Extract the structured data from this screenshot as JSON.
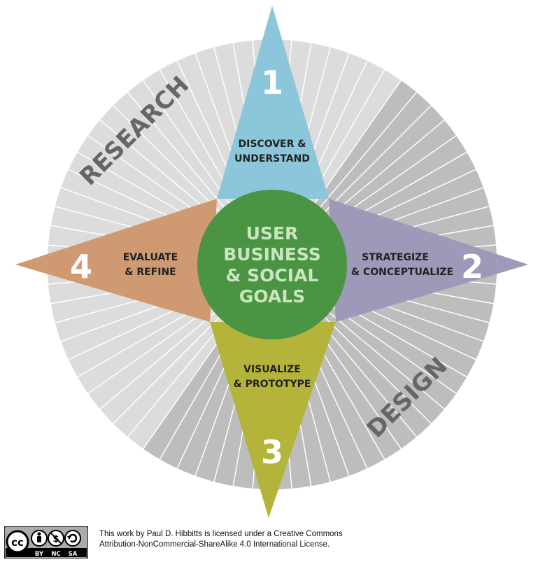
{
  "center": {
    "lines": [
      "USER",
      "BUSINESS",
      "& SOCIAL",
      "GOALS"
    ]
  },
  "quadrant_labels": {
    "research": "RESEARCH",
    "design": "DESIGN"
  },
  "points": [
    {
      "number": "1",
      "lines": [
        "DISCOVER &",
        "UNDERSTAND"
      ]
    },
    {
      "number": "2",
      "lines": [
        "STRATEGIZE",
        "& CONCEPTUALIZE"
      ]
    },
    {
      "number": "3",
      "lines": [
        "VISUALIZE",
        "& PROTOTYPE"
      ]
    },
    {
      "number": "4",
      "lines": [
        "EVALUATE",
        "& REFINE"
      ]
    }
  ],
  "colors": {
    "blue": "#8cc6da",
    "purple": "#9c99b9",
    "olive": "#b5b43a",
    "orange": "#cf9a72",
    "green": "#4a9444",
    "wheel_light": "#dcdcdc",
    "wheel_dark": "#bdbdbd",
    "label_gray": "#666666"
  },
  "license": {
    "badge": {
      "cc": "cc",
      "by": "BY",
      "nc": "NC",
      "sa": "SA"
    },
    "line1": "This work by Paul D. Hibbitts is licensed under a Creative Commons",
    "line2": "Attribution-NonCommercial-ShareAlike 4.0 International License."
  }
}
